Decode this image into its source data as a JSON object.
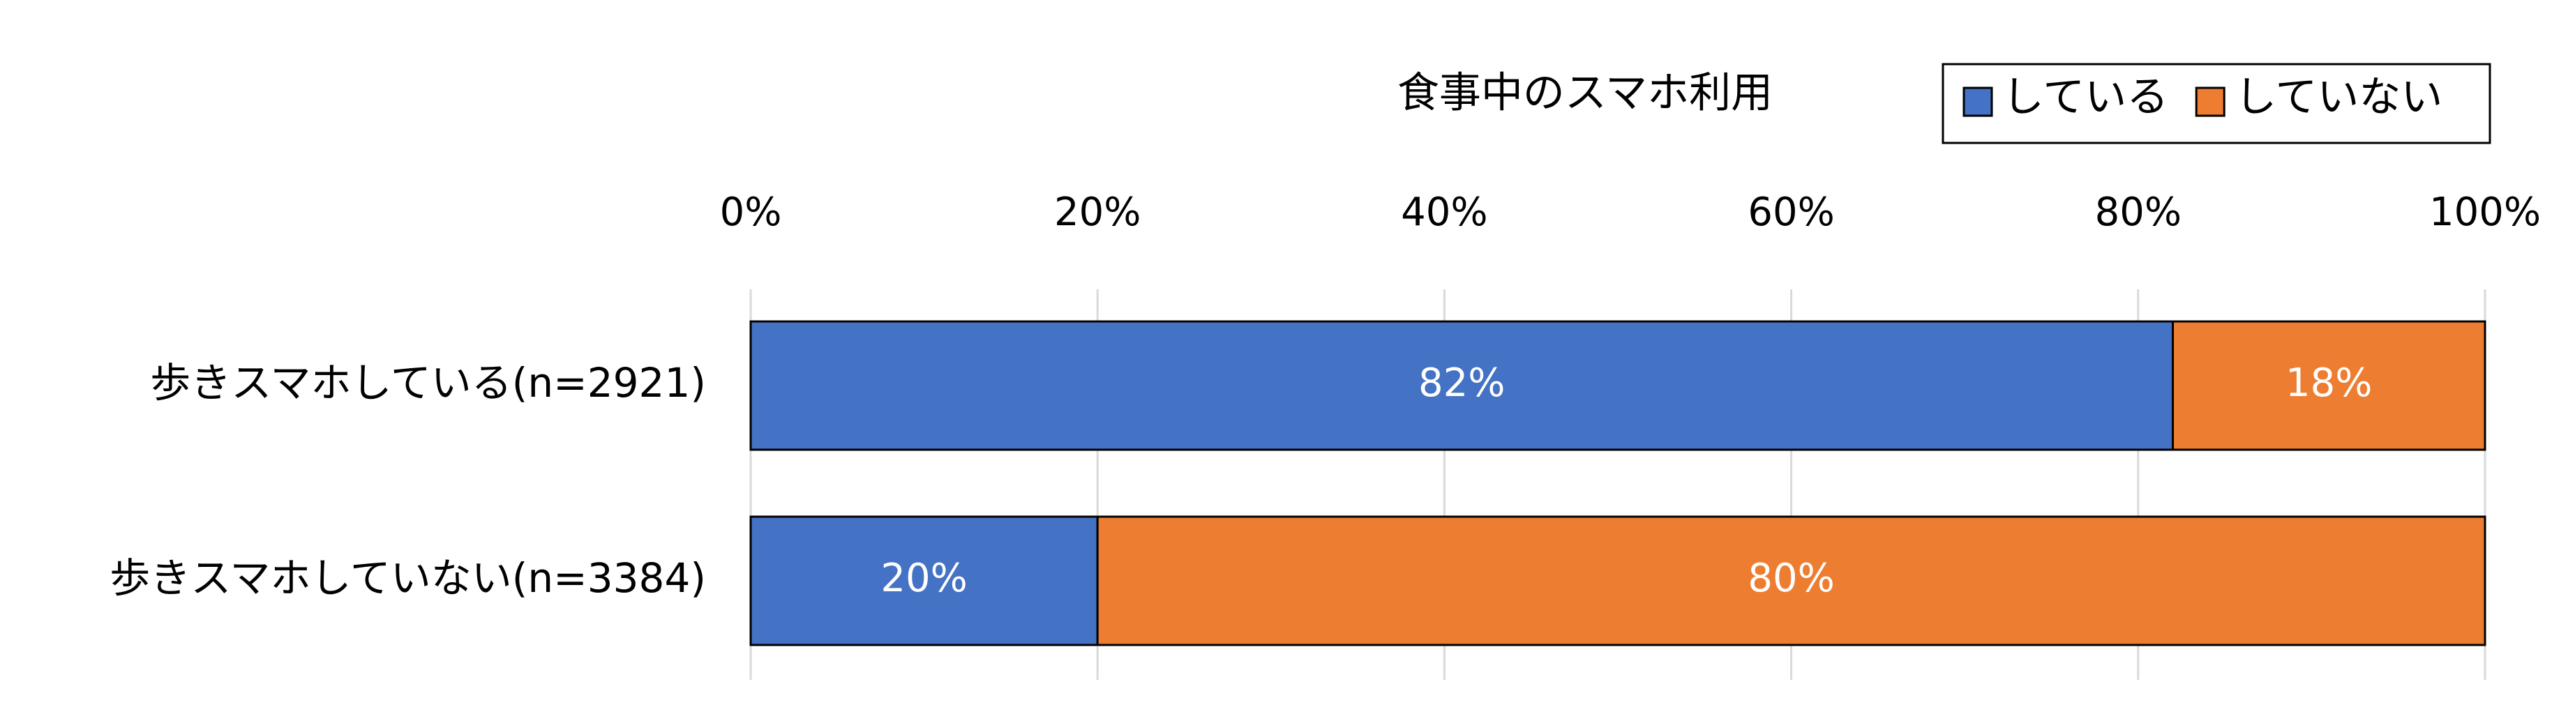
{
  "chart_data": {
    "type": "stacked_barh",
    "legend_title": "食事中のスマホ利用",
    "categories": [
      "歩きスマホしている(n=2921)",
      "歩きスマホしていない(n=3384)"
    ],
    "series": [
      {
        "name": "している",
        "color": "#4472c4",
        "values": [
          82,
          20
        ],
        "value_labels": [
          "82%",
          "20%"
        ]
      },
      {
        "name": "していない",
        "color": "#ed7d31",
        "values": [
          18,
          80
        ],
        "value_labels": [
          "18%",
          "80%"
        ]
      }
    ],
    "xlim": [
      0,
      100
    ],
    "xticks": [
      {
        "value": 0,
        "label": "0%"
      },
      {
        "value": 20,
        "label": "20%"
      },
      {
        "value": 40,
        "label": "40%"
      },
      {
        "value": 60,
        "label": "60%"
      },
      {
        "value": 80,
        "label": "80%"
      },
      {
        "value": 100,
        "label": "100%"
      }
    ],
    "grid": true,
    "legend": "top-right"
  }
}
